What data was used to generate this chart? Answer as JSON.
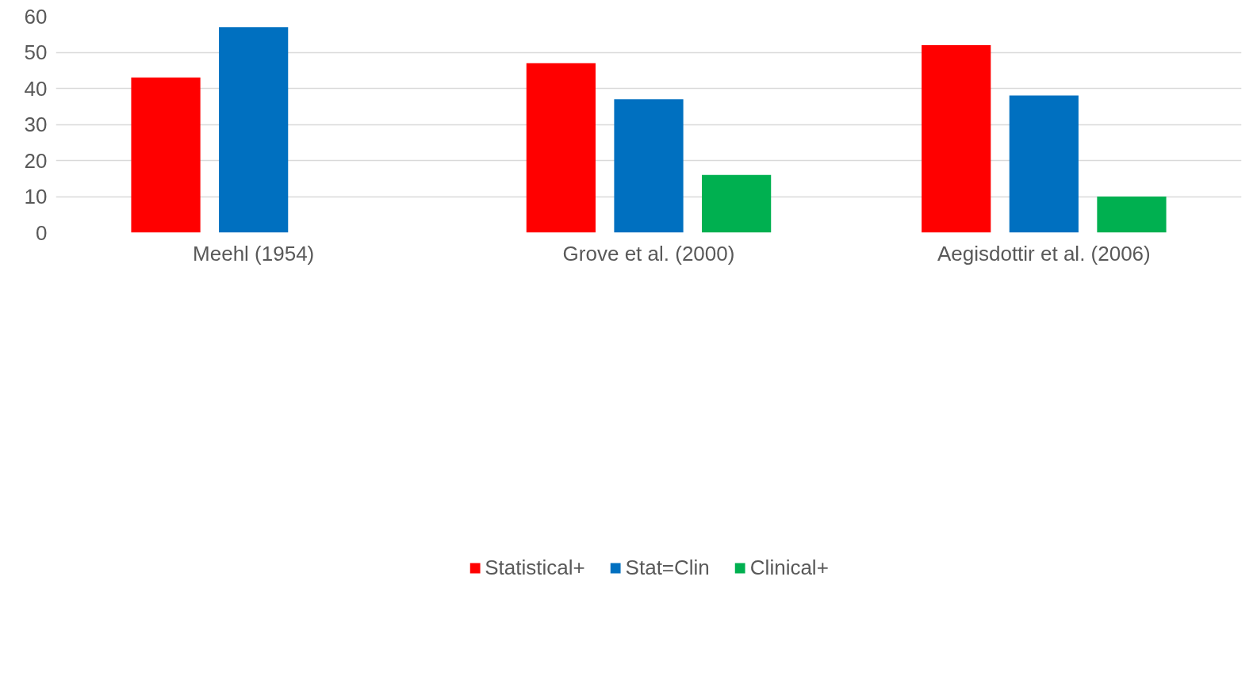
{
  "chart_data": {
    "type": "bar",
    "categories": [
      "Meehl (1954)",
      "Grove et al. (2000)",
      "Aegisdottir et al. (2006)"
    ],
    "series": [
      {
        "name": "Statistical+",
        "color": "#ff0000",
        "values": [
          43,
          47,
          52
        ]
      },
      {
        "name": "Stat=Clin",
        "color": "#0070c0",
        "values": [
          57,
          37,
          38
        ]
      },
      {
        "name": "Clinical+",
        "color": "#00b050",
        "values": [
          0,
          16,
          10
        ]
      }
    ],
    "ylim": [
      0,
      60
    ],
    "yticks": [
      0,
      10,
      20,
      30,
      40,
      50,
      60
    ],
    "grid": "y",
    "legend": "bottom"
  }
}
